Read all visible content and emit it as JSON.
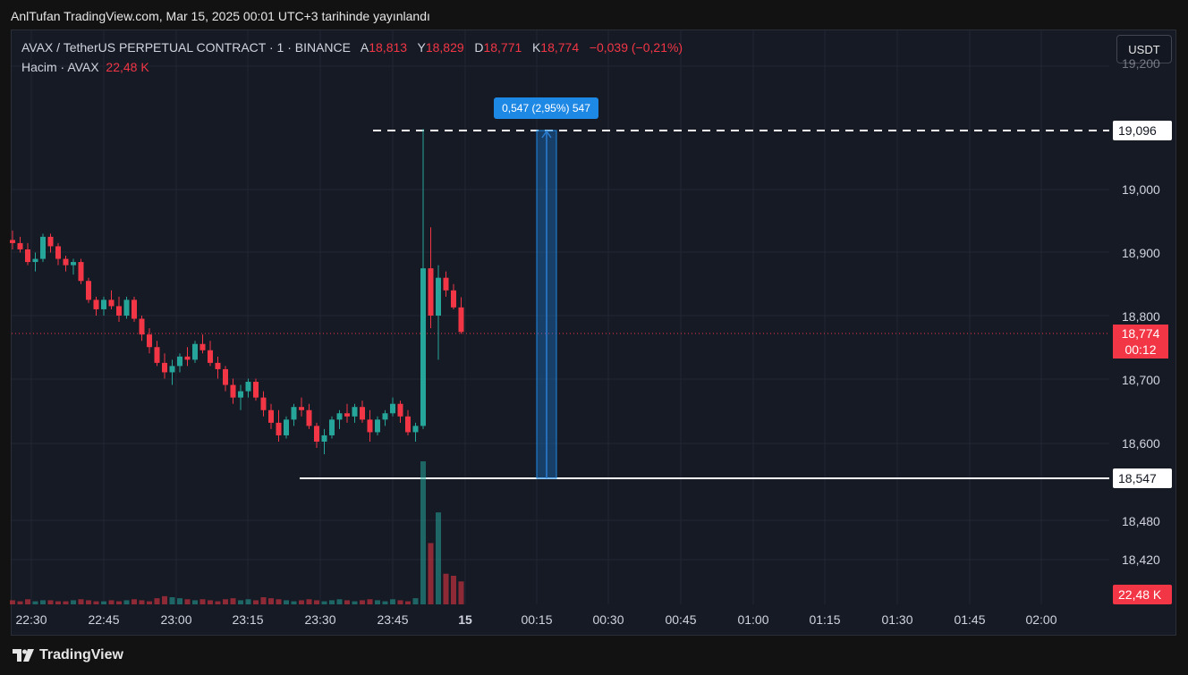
{
  "caption": "AnlTufan TradingView.com, Mar 15, 2025 00:01 UTC+3 tarihinde yayınlandı",
  "legend": {
    "symbol": "AVAX / TetherUS PERPETUAL CONTRACT · 1 · BINANCE",
    "open_label": "A",
    "open": "18,813",
    "high_label": "Y",
    "high": "18,829",
    "low_label": "D",
    "low": "18,771",
    "close_label": "K",
    "close": "18,774",
    "change": "−0,039 (−0,21%)",
    "volume_label": "Hacim · AVAX",
    "volume": "22,48 K"
  },
  "currency": "USDT",
  "colors": {
    "up": "#26a69a",
    "down": "#f23645",
    "measure": "#1e88e5",
    "background": "#161a25"
  },
  "price_axis": {
    "ticks": [
      "19,000",
      "18,900",
      "18,800",
      "18,700",
      "18,600",
      "18,480",
      "18,420"
    ],
    "partial_top": "19,200"
  },
  "time_axis": {
    "ticks": [
      "22:30",
      "22:45",
      "23:00",
      "23:15",
      "23:30",
      "23:45",
      "15",
      "00:15",
      "00:30",
      "00:45",
      "01:00",
      "01:15",
      "01:30",
      "01:45",
      "02:00"
    ]
  },
  "tags": {
    "upper_level": "19,096",
    "lower_level": "18,547",
    "last_price": "18,774",
    "countdown": "00:12",
    "volume": "22,48 K"
  },
  "measure": {
    "label": "0,547 (2,95%) 547"
  },
  "brand": {
    "name": "TradingView",
    "icon": "tradingview-logo-icon"
  },
  "chart_data": {
    "type": "candlestick",
    "ohlc": [
      [
        18.92,
        18.935,
        18.905,
        18.915
      ],
      [
        18.915,
        18.925,
        18.9,
        18.905
      ],
      [
        18.905,
        18.915,
        18.88,
        18.885
      ],
      [
        18.885,
        18.9,
        18.87,
        18.89
      ],
      [
        18.89,
        18.93,
        18.885,
        18.925
      ],
      [
        18.925,
        18.93,
        18.9,
        18.91
      ],
      [
        18.91,
        18.915,
        18.88,
        18.89
      ],
      [
        18.89,
        18.895,
        18.87,
        18.88
      ],
      [
        18.88,
        18.89,
        18.865,
        18.885
      ],
      [
        18.885,
        18.89,
        18.85,
        18.855
      ],
      [
        18.855,
        18.86,
        18.82,
        18.825
      ],
      [
        18.825,
        18.83,
        18.8,
        18.81
      ],
      [
        18.81,
        18.83,
        18.8,
        18.825
      ],
      [
        18.825,
        18.84,
        18.81,
        18.815
      ],
      [
        18.815,
        18.83,
        18.79,
        18.8
      ],
      [
        18.8,
        18.83,
        18.795,
        18.825
      ],
      [
        18.825,
        18.83,
        18.79,
        18.795
      ],
      [
        18.795,
        18.8,
        18.76,
        18.77
      ],
      [
        18.77,
        18.78,
        18.74,
        18.75
      ],
      [
        18.75,
        18.76,
        18.72,
        18.725
      ],
      [
        18.725,
        18.74,
        18.7,
        18.71
      ],
      [
        18.71,
        18.73,
        18.69,
        18.72
      ],
      [
        18.72,
        18.74,
        18.71,
        18.735
      ],
      [
        18.735,
        18.75,
        18.72,
        18.73
      ],
      [
        18.73,
        18.76,
        18.725,
        18.755
      ],
      [
        18.755,
        18.77,
        18.74,
        18.745
      ],
      [
        18.745,
        18.76,
        18.72,
        18.725
      ],
      [
        18.725,
        18.735,
        18.7,
        18.715
      ],
      [
        18.715,
        18.72,
        18.68,
        18.69
      ],
      [
        18.69,
        18.7,
        18.66,
        18.67
      ],
      [
        18.67,
        18.69,
        18.65,
        18.68
      ],
      [
        18.68,
        18.7,
        18.67,
        18.695
      ],
      [
        18.695,
        18.7,
        18.665,
        18.67
      ],
      [
        18.67,
        18.68,
        18.64,
        18.65
      ],
      [
        18.65,
        18.66,
        18.62,
        18.63
      ],
      [
        18.63,
        18.65,
        18.6,
        18.61
      ],
      [
        18.61,
        18.64,
        18.605,
        18.635
      ],
      [
        18.635,
        18.66,
        18.625,
        18.655
      ],
      [
        18.655,
        18.67,
        18.64,
        18.65
      ],
      [
        18.65,
        18.66,
        18.62,
        18.625
      ],
      [
        18.625,
        18.63,
        18.59,
        18.6
      ],
      [
        18.6,
        18.62,
        18.58,
        18.61
      ],
      [
        18.61,
        18.64,
        18.605,
        18.635
      ],
      [
        18.635,
        18.65,
        18.62,
        18.645
      ],
      [
        18.645,
        18.66,
        18.63,
        18.64
      ],
      [
        18.64,
        18.66,
        18.63,
        18.655
      ],
      [
        18.655,
        18.665,
        18.63,
        18.635
      ],
      [
        18.635,
        18.65,
        18.6,
        18.615
      ],
      [
        18.615,
        18.64,
        18.61,
        18.635
      ],
      [
        18.635,
        18.65,
        18.625,
        18.645
      ],
      [
        18.645,
        18.67,
        18.64,
        18.66
      ],
      [
        18.66,
        18.665,
        18.63,
        18.64
      ],
      [
        18.64,
        18.65,
        18.61,
        18.615
      ],
      [
        18.615,
        18.63,
        18.6,
        18.625
      ],
      [
        18.625,
        19.096,
        18.62,
        18.875
      ],
      [
        18.875,
        18.94,
        18.78,
        18.8
      ],
      [
        18.8,
        18.88,
        18.73,
        18.86
      ],
      [
        18.86,
        18.87,
        18.83,
        18.84
      ],
      [
        18.84,
        18.85,
        18.81,
        18.813
      ],
      [
        18.813,
        18.829,
        18.771,
        18.774
      ]
    ],
    "volume_scale_k": [
      4,
      3,
      5,
      3,
      4,
      4,
      3,
      3,
      4,
      5,
      4,
      3,
      3,
      4,
      3,
      4,
      5,
      4,
      3,
      6,
      8,
      7,
      6,
      5,
      4,
      5,
      4,
      3,
      5,
      6,
      4,
      5,
      4,
      7,
      6,
      5,
      4,
      3,
      4,
      5,
      4,
      3,
      4,
      5,
      4,
      3,
      4,
      5,
      4,
      3,
      5,
      4,
      3,
      6,
      140,
      60,
      90,
      30,
      28,
      22.48
    ],
    "horizontal_lines": [
      19.096,
      18.547
    ],
    "last_price": 18.774,
    "ylim": [
      18.38,
      19.21
    ]
  }
}
